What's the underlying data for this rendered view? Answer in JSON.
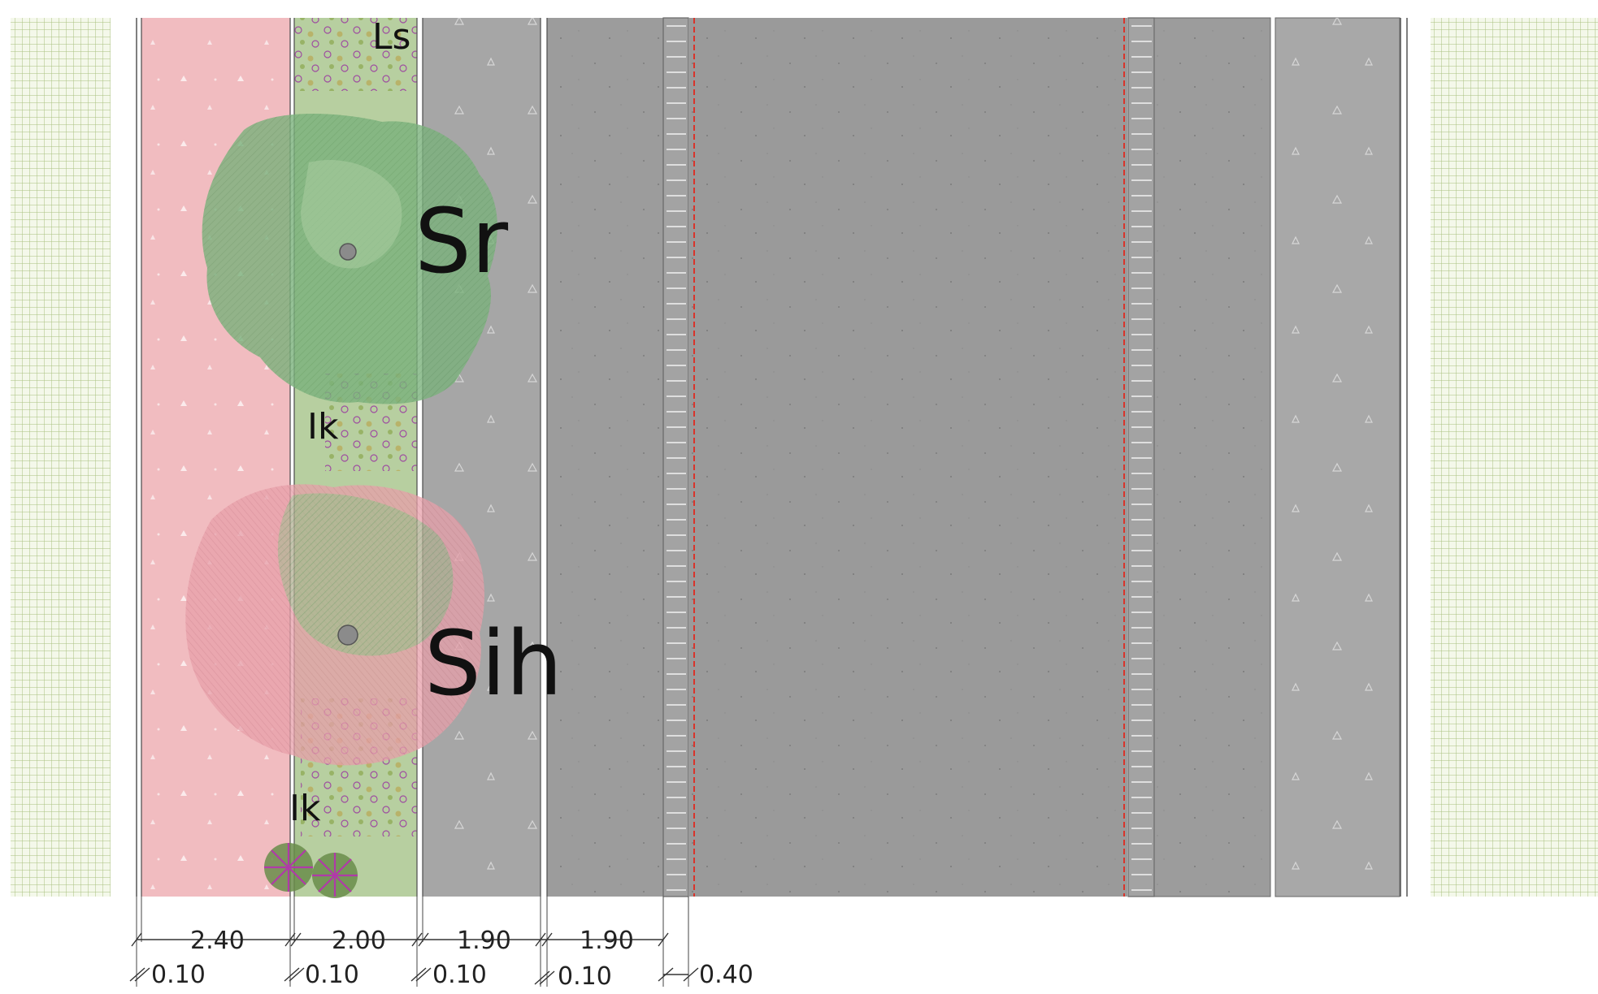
{
  "plant_labels": {
    "ls": "Ls",
    "sr": "Sr",
    "ik_upper": "Ik",
    "sih": "Sih",
    "ik_lower": "Ik"
  },
  "dimensions": {
    "widths": [
      "2.40",
      "2.00",
      "1.90",
      "1.90"
    ],
    "gaps": [
      "0.10",
      "0.10",
      "0.10",
      "0.10",
      "0.40"
    ]
  },
  "colors": {
    "grass_hatch": "#c9d8a8",
    "bike_path": "#f1bcc0",
    "planting_strip": "#b7cfa0",
    "sidewalk_grey": "#a6a6a6",
    "lane_grey": "#9c9c9c",
    "carriageway": "#9a9a9a",
    "red_dashed_line": "#d9342b",
    "tree_green": "#6aa56b",
    "tree_pink": "#e8a0aa",
    "flower_purple": "#9b3fa0"
  }
}
